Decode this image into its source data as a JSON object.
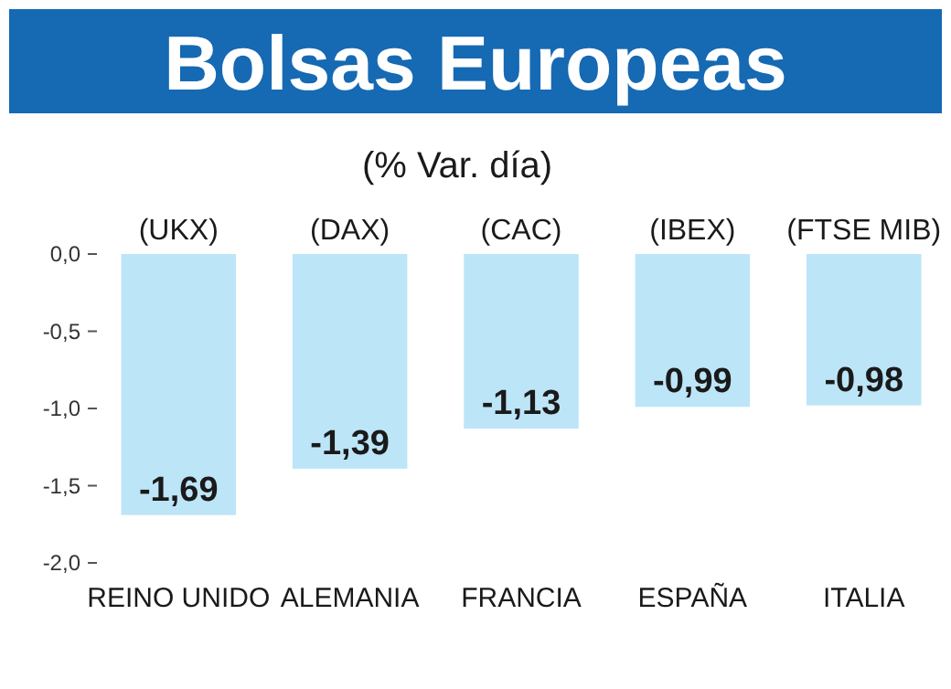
{
  "chart_data": {
    "type": "bar",
    "title": "Bolsas Europeas",
    "subtitle": "(% Var. día)",
    "categories": [
      "REINO UNIDO",
      "ALEMANIA",
      "FRANCIA",
      "ESPAÑA",
      "ITALIA"
    ],
    "values": [
      -1.69,
      -1.39,
      -1.13,
      -0.99,
      -0.98
    ],
    "color": "#bde5f8",
    "value_labels": [
      "-1,69",
      "-1,39",
      "-1,13",
      "-0,99",
      "-0,98"
    ],
    "ylim": [
      -2,
      0
    ],
    "yticks": [
      {
        "value": 0,
        "label": "0,0"
      },
      {
        "value": -0.5,
        "label": "-0,5"
      },
      {
        "value": -1,
        "label": "-1,0"
      },
      {
        "value": -1.5,
        "label": "-1,5"
      },
      {
        "value": -2,
        "label": "-2,0"
      }
    ],
    "annotations": [
      {
        "text": "(UKX)",
        "x": "REINO UNIDO",
        "y": 0
      },
      {
        "text": "(DAX)",
        "x": "ALEMANIA",
        "y": 0
      },
      {
        "text": "(CAC)",
        "x": "FRANCIA",
        "y": 0
      },
      {
        "text": "(IBEX)",
        "x": "ESPAÑA",
        "y": 0
      },
      {
        "text": "(FTSE MIB)",
        "x": "ITALIA",
        "y": 0
      }
    ]
  }
}
